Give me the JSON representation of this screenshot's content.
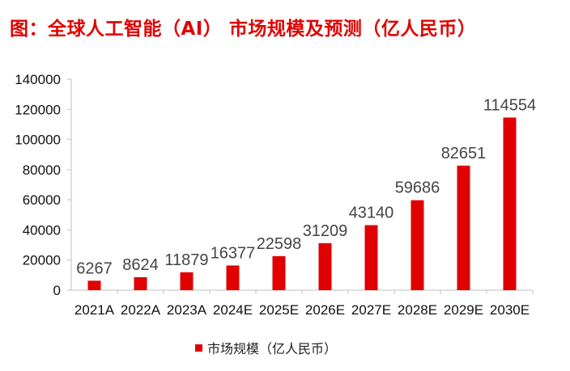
{
  "title": "图：全球人工智能（AI） 市场规模及预测（亿人民币）",
  "chart_data": {
    "type": "bar",
    "title": "图：全球人工智能（AI） 市场规模及预测（亿人民币）",
    "categories": [
      "2021A",
      "2022A",
      "2023A",
      "2024E",
      "2025E",
      "2026E",
      "2027E",
      "2028E",
      "2029E",
      "2030E"
    ],
    "series": [
      {
        "name": "市场规模（亿人民币）",
        "values": [
          6267,
          8624,
          11879,
          16377,
          22598,
          31209,
          43140,
          59686,
          82651,
          114554
        ],
        "color": "#e00000"
      }
    ],
    "value_labels": [
      "6267",
      "8624",
      "11879",
      "16377",
      "22598",
      "31209",
      "43140",
      "59686",
      "82651",
      "114554"
    ],
    "y_ticks": [
      "0",
      "20000",
      "40000",
      "60000",
      "80000",
      "100000",
      "120000",
      "140000"
    ],
    "ylim": [
      0,
      140000
    ],
    "xlabel": "",
    "ylabel": "",
    "grid": false,
    "legend_position": "bottom"
  },
  "legend": {
    "label": "市场规模（亿人民币）"
  }
}
